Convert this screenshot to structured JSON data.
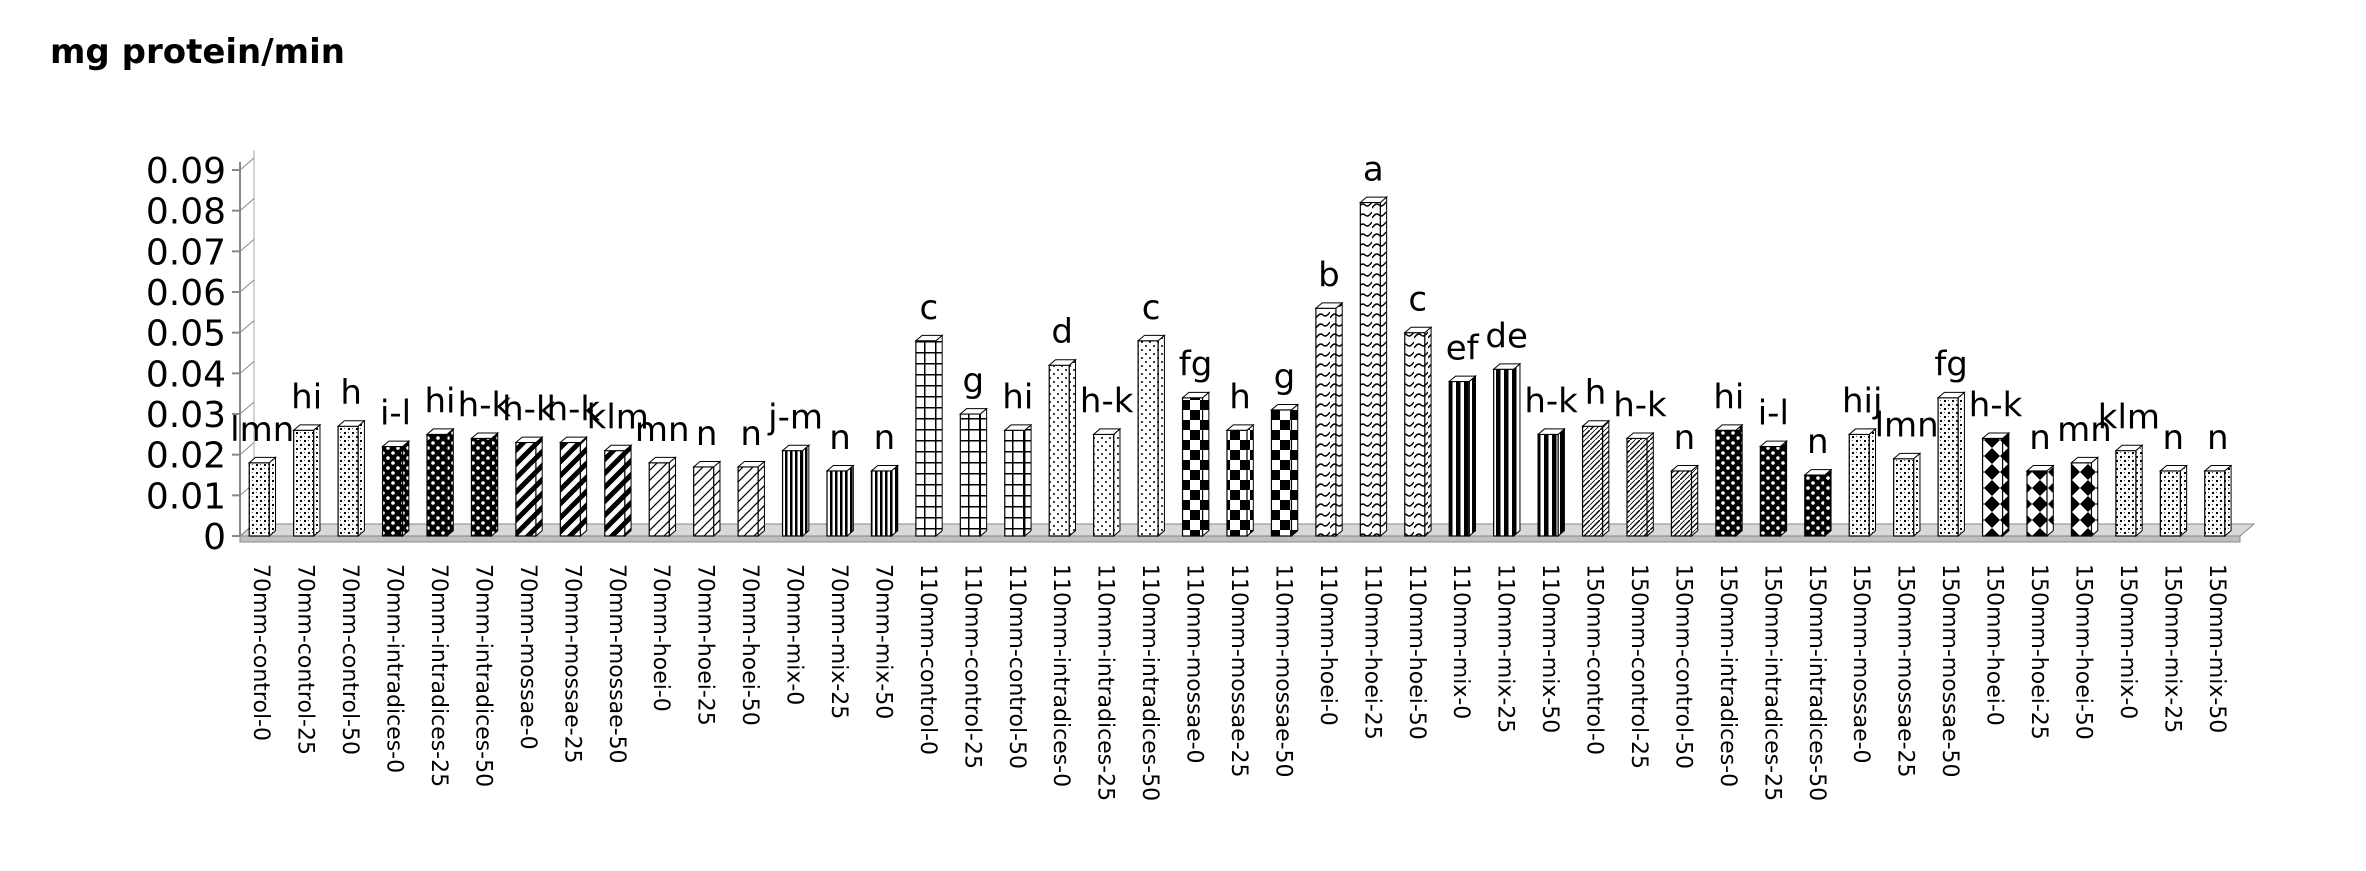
{
  "title": "mg protein/min",
  "chart_data": {
    "type": "bar",
    "title": "",
    "ylabel": "mg protein/min",
    "xlabel": "",
    "ylim": [
      0,
      0.09
    ],
    "yticks": [
      "0",
      "0.01",
      "0.02",
      "0.03",
      "0.04",
      "0.05",
      "0.06",
      "0.07",
      "0.08",
      "0.09"
    ],
    "categories": [
      "70mm-control-0",
      "70mm-control-25",
      "70mm-control-50",
      "70mm-intradices-0",
      "70mm-intradices-25",
      "70mm-intradices-50",
      "70mm-mossae-0",
      "70mm-mossae-25",
      "70mm-mossae-50",
      "70mm-hoei-0",
      "70mm-hoei-25",
      "70mm-hoei-50",
      "70mm-mix-0",
      "70mm-mix-25",
      "70mm-mix-50",
      "110mm-control-0",
      "110mm-control-25",
      "110mm-control-50",
      "110mm-intradices-0",
      "110mm-intradices-25",
      "110mm-intradices-50",
      "110mm-mossae-0",
      "110mm-mossae-25",
      "110mm-mossae-50",
      "110mm-hoei-0",
      "110mm-hoei-25",
      "110mm-hoei-50",
      "110mm-mix-0",
      "110mm-mix-25",
      "110mm-mix-50",
      "150mm-control-0",
      "150mm-control-25",
      "150mm-control-50",
      "150mm-intradices-0",
      "150mm-intradices-25",
      "150mm-intradices-50",
      "150mm-mossae-0",
      "150mm-mossae-25",
      "150mm-mossae-50",
      "150mm-hoei-0",
      "150mm-hoei-25",
      "150mm-hoei-50",
      "150mm-mix-0",
      "150mm-mix-25",
      "150mm-mix-50"
    ],
    "values": [
      0.018,
      0.026,
      0.027,
      0.022,
      0.025,
      0.024,
      0.023,
      0.023,
      0.021,
      0.018,
      0.017,
      0.017,
      0.021,
      0.016,
      0.016,
      0.048,
      0.03,
      0.026,
      0.042,
      0.025,
      0.048,
      0.034,
      0.026,
      0.031,
      0.056,
      0.082,
      0.05,
      0.038,
      0.041,
      0.025,
      0.027,
      0.024,
      0.016,
      0.026,
      0.022,
      0.015,
      0.025,
      0.019,
      0.034,
      0.024,
      0.016,
      0.018,
      0.021,
      0.016,
      0.016
    ],
    "letters": [
      "lmn",
      "hi",
      "h",
      "i-l",
      "hi",
      "h-k",
      "h-k",
      "h-k",
      "klm",
      "mn",
      "n",
      "n",
      "j-m",
      "n",
      "n",
      "c",
      "g",
      "hi",
      "d",
      "h-k",
      "c",
      "fg",
      "h",
      "g",
      "b",
      "a",
      "c",
      "ef",
      "de",
      "h-k",
      "h",
      "h-k",
      "n",
      "hi",
      "i-l",
      "n",
      "hij",
      "lmn",
      "fg",
      "h-k",
      "n",
      "mn",
      "klm",
      "n",
      "n"
    ],
    "patterns": [
      "checker",
      "checker",
      "checker",
      "dots",
      "dots",
      "dots",
      "diag",
      "diag",
      "diag",
      "thin-diag",
      "thin-diag",
      "thin-diag",
      "vstripes",
      "vstripes",
      "vstripes",
      "grid",
      "grid",
      "grid",
      "stipple",
      "stipple",
      "stipple",
      "bigcheck",
      "bigcheck",
      "bigcheck",
      "wave",
      "wave",
      "wave",
      "vbars",
      "vbars",
      "vbars",
      "hatch",
      "hatch",
      "hatch",
      "dots",
      "dots",
      "dots",
      "checker",
      "checker",
      "checker",
      "diamond",
      "diamond",
      "diamond",
      "checker",
      "checker",
      "checker"
    ],
    "grid": false,
    "legend": "none"
  }
}
